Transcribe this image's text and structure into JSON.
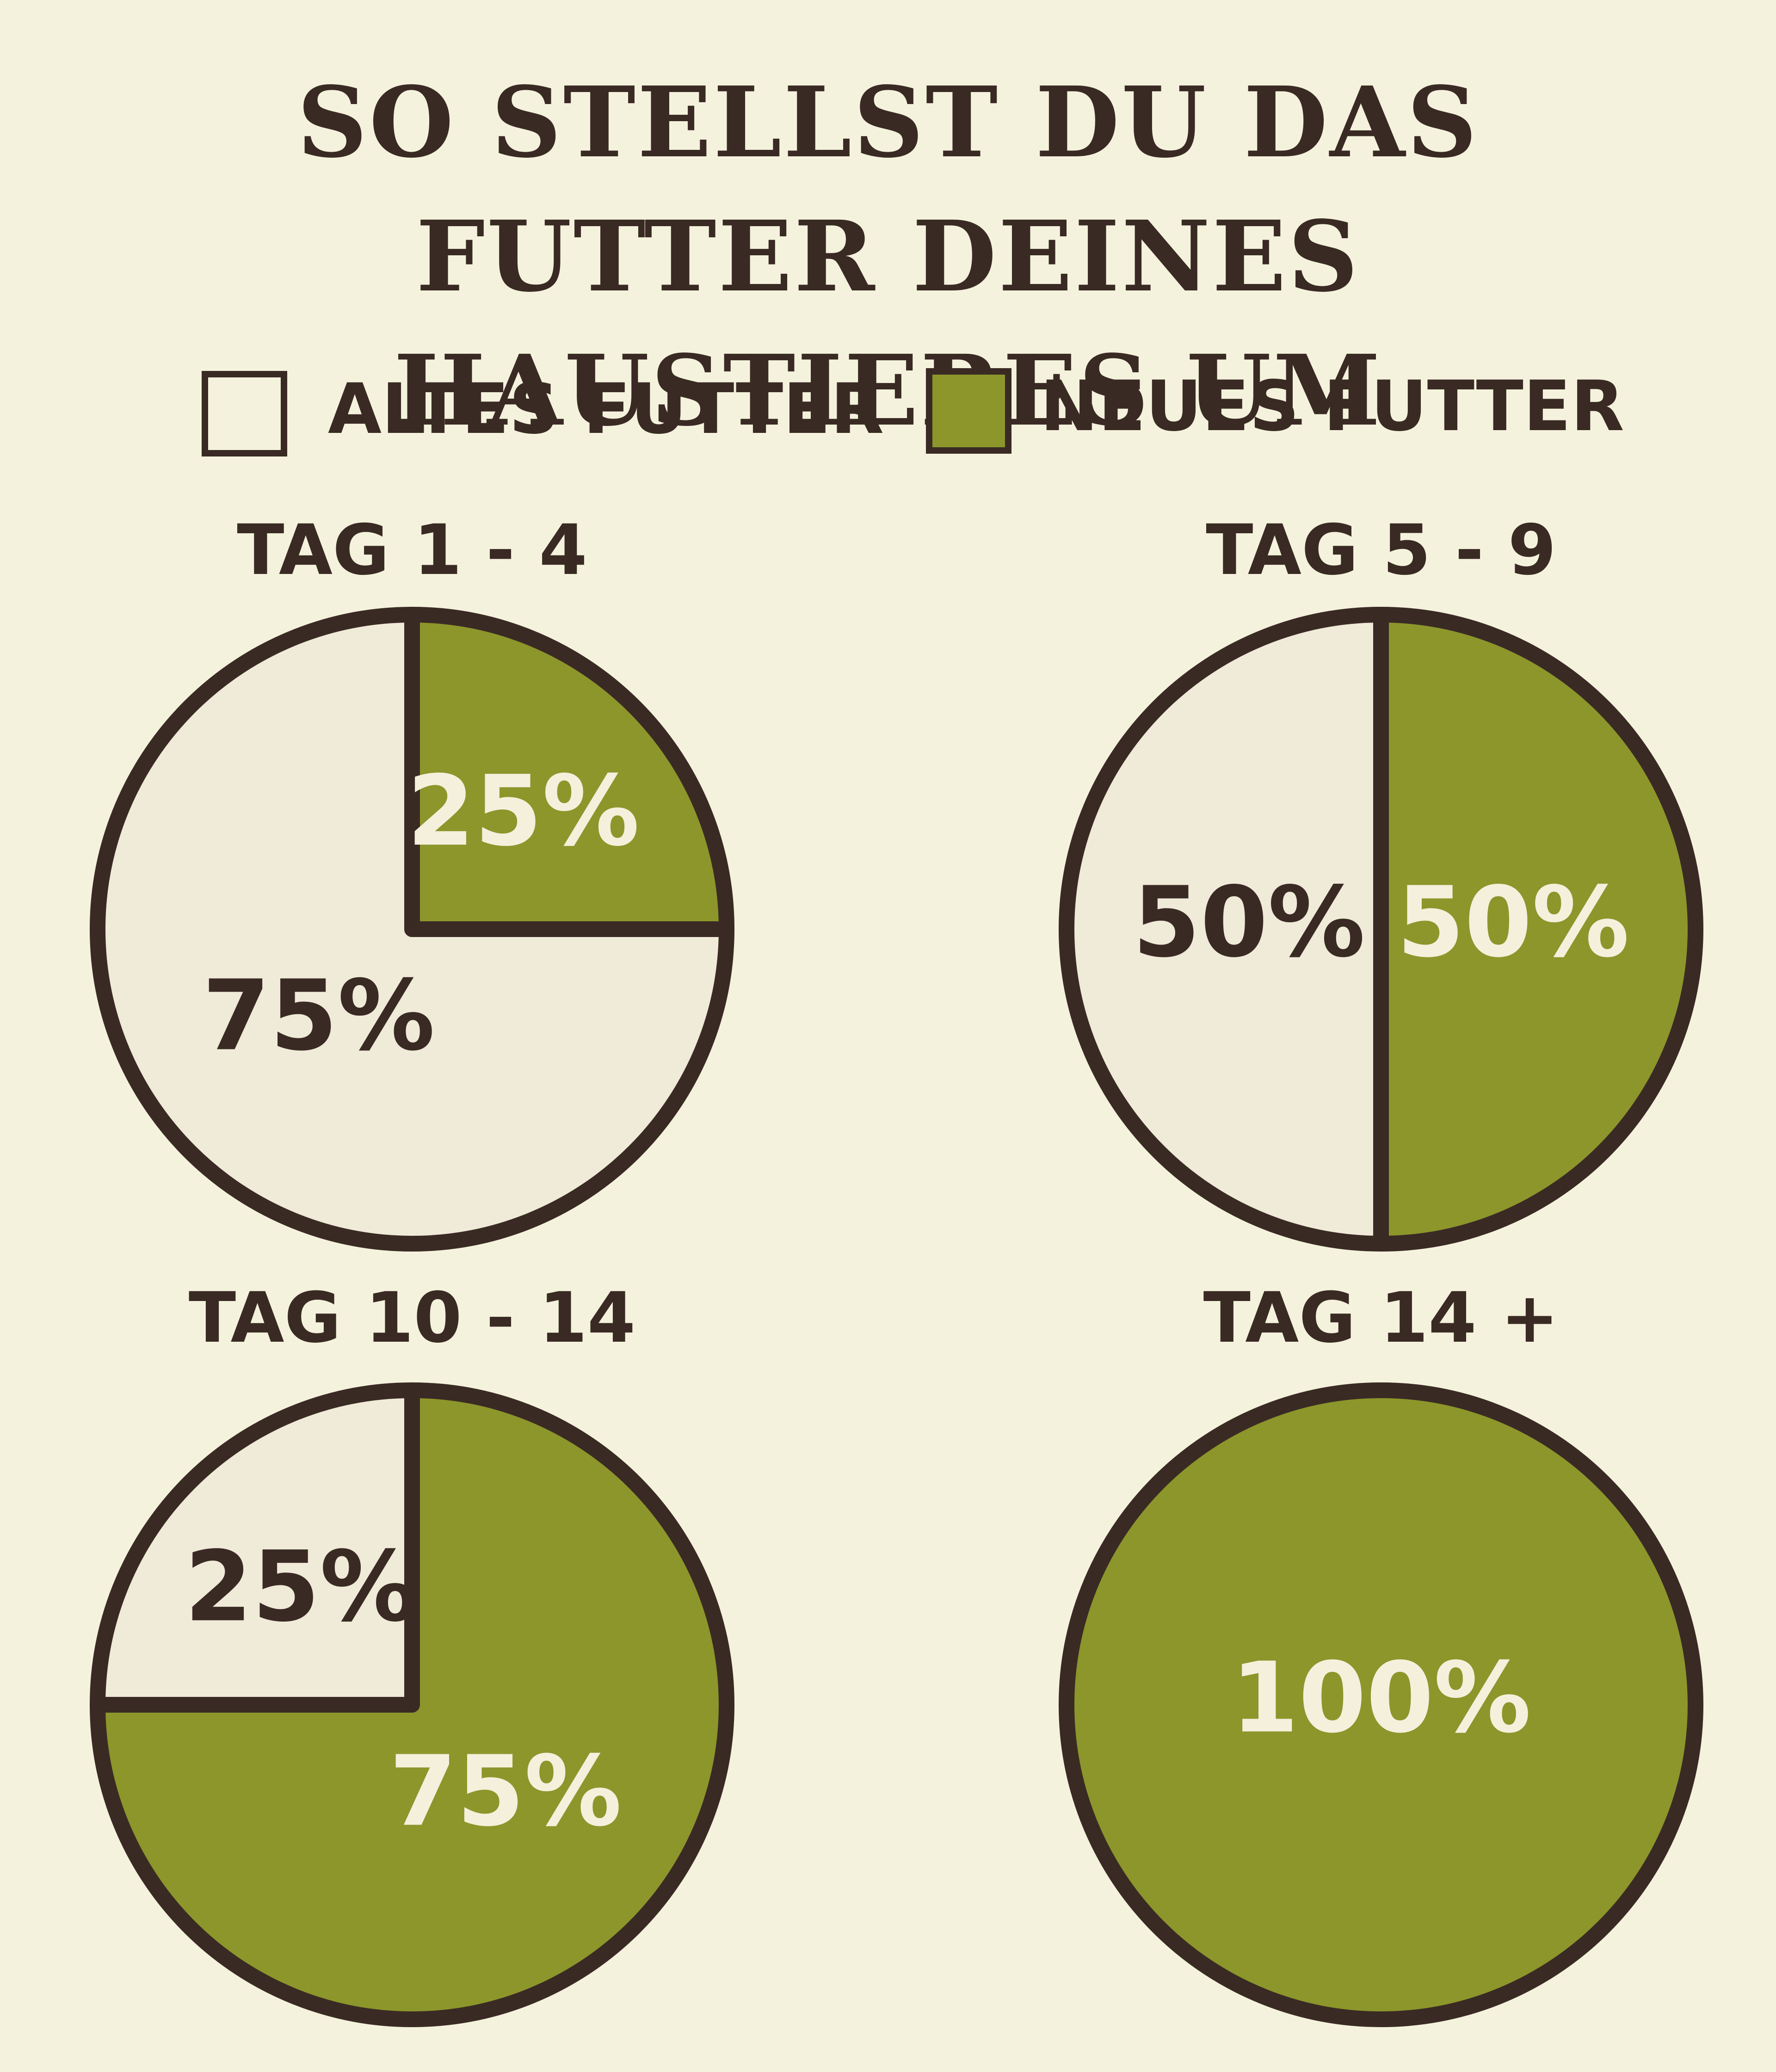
{
  "title": "SO STELLST DU DAS FUTTER DEINES HAUSTIERES UM",
  "chart_data": [
    {
      "type": "pie",
      "title": "TAG 1 - 4",
      "categories": [
        "ALTES FUTTER",
        "NEUES FUTTER"
      ],
      "values": [
        75,
        25
      ],
      "value_labels": [
        "75%",
        "25%"
      ],
      "colors": [
        "#f0ead8",
        "#8c962b"
      ]
    },
    {
      "type": "pie",
      "title": "TAG 5 - 9",
      "categories": [
        "ALTES FUTTER",
        "NEUES FUTTER"
      ],
      "values": [
        50,
        50
      ],
      "value_labels": [
        "50%",
        "50%"
      ],
      "colors": [
        "#f0ead8",
        "#8c962b"
      ]
    },
    {
      "type": "pie",
      "title": "TAG 10 - 14",
      "categories": [
        "ALTES FUTTER",
        "NEUES FUTTER"
      ],
      "values": [
        25,
        75
      ],
      "value_labels": [
        "25%",
        "75%"
      ],
      "colors": [
        "#f0ead8",
        "#8c962b"
      ]
    },
    {
      "type": "pie",
      "title": "TAG 14 +",
      "categories": [
        "NEUES FUTTER"
      ],
      "values": [
        100
      ],
      "value_labels": [
        "100%"
      ],
      "colors": [
        "#8c962b"
      ]
    }
  ]
}
